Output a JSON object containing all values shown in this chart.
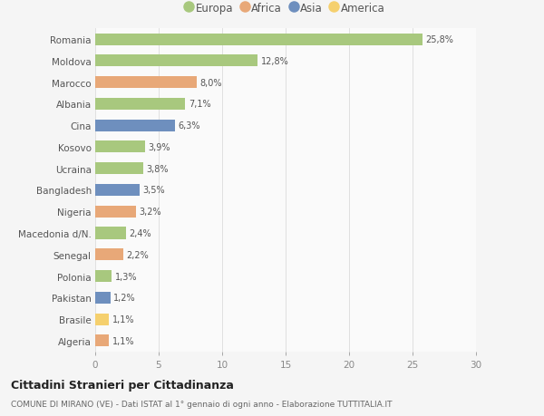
{
  "countries": [
    "Romania",
    "Moldova",
    "Marocco",
    "Albania",
    "Cina",
    "Kosovo",
    "Ucraina",
    "Bangladesh",
    "Nigeria",
    "Macedonia d/N.",
    "Senegal",
    "Polonia",
    "Pakistan",
    "Brasile",
    "Algeria"
  ],
  "values": [
    25.8,
    12.8,
    8.0,
    7.1,
    6.3,
    3.9,
    3.8,
    3.5,
    3.2,
    2.4,
    2.2,
    1.3,
    1.2,
    1.1,
    1.1
  ],
  "labels": [
    "25,8%",
    "12,8%",
    "8,0%",
    "7,1%",
    "6,3%",
    "3,9%",
    "3,8%",
    "3,5%",
    "3,2%",
    "2,4%",
    "2,2%",
    "1,3%",
    "1,2%",
    "1,1%",
    "1,1%"
  ],
  "continents": [
    "Europa",
    "Europa",
    "Africa",
    "Europa",
    "Asia",
    "Europa",
    "Europa",
    "Asia",
    "Africa",
    "Europa",
    "Africa",
    "Europa",
    "Asia",
    "America",
    "Africa"
  ],
  "colors": {
    "Europa": "#a8c87e",
    "Africa": "#e8a878",
    "Asia": "#6e8fbe",
    "America": "#f5d06e"
  },
  "legend_order": [
    "Europa",
    "Africa",
    "Asia",
    "America"
  ],
  "title": "Cittadini Stranieri per Cittadinanza",
  "subtitle": "COMUNE DI MIRANO (VE) - Dati ISTAT al 1° gennaio di ogni anno - Elaborazione TUTTITALIA.IT",
  "xlim": [
    0,
    30
  ],
  "xticks": [
    0,
    5,
    10,
    15,
    20,
    25,
    30
  ],
  "background_color": "#f5f5f5",
  "bar_background": "#fafafa",
  "grid_color": "#e0e0e0"
}
